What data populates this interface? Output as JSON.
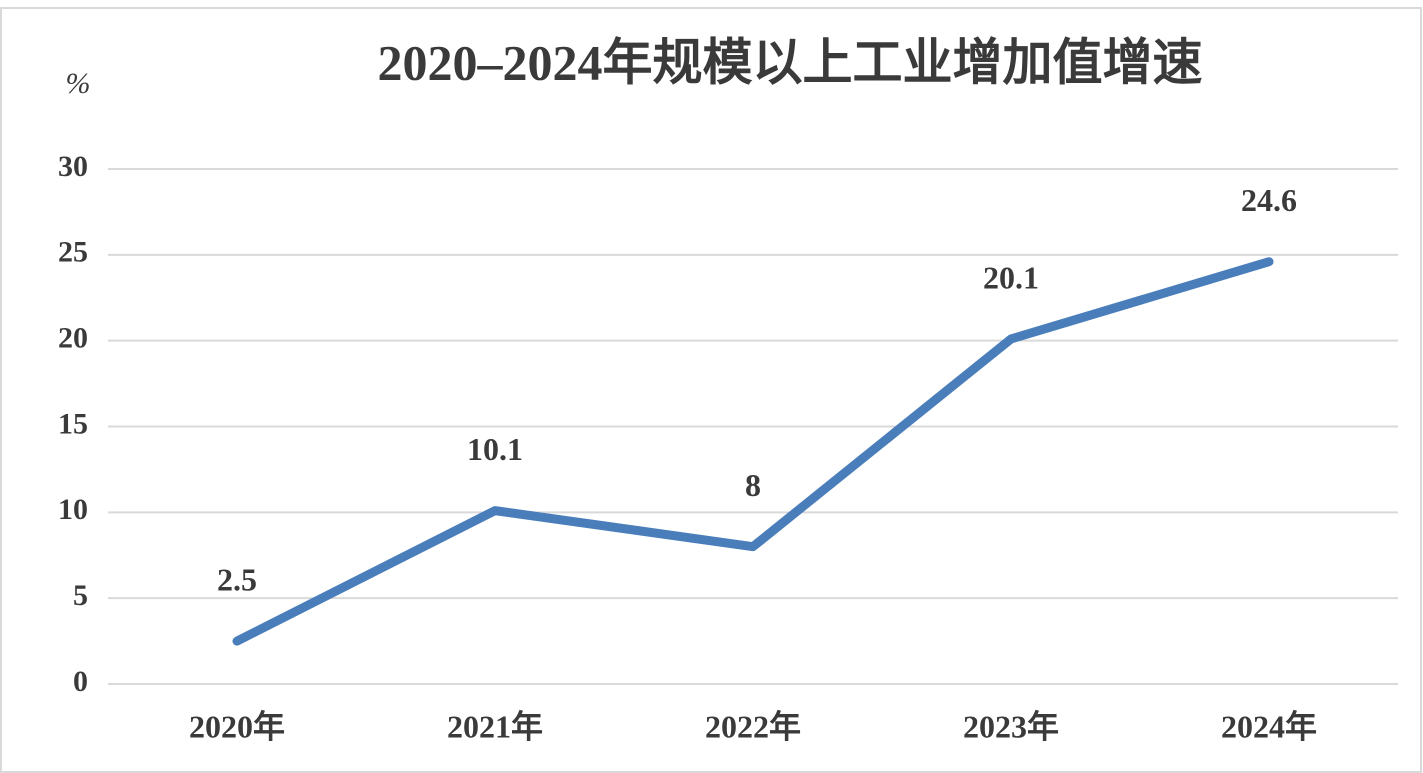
{
  "chart_data": {
    "type": "line",
    "title": "2020–2024年规模以上工业增加值增速",
    "y_label": "%",
    "categories": [
      "2020年",
      "2021年",
      "2022年",
      "2023年",
      "2024年"
    ],
    "series": [
      {
        "name": "规模以上工业增加值增速",
        "color": "#4a7ebb",
        "values": [
          2.5,
          10.1,
          8,
          20.1,
          24.6
        ]
      }
    ],
    "ylim": [
      0,
      30
    ],
    "yticks": [
      0,
      5,
      10,
      15,
      20,
      25,
      30
    ],
    "grid": true
  }
}
